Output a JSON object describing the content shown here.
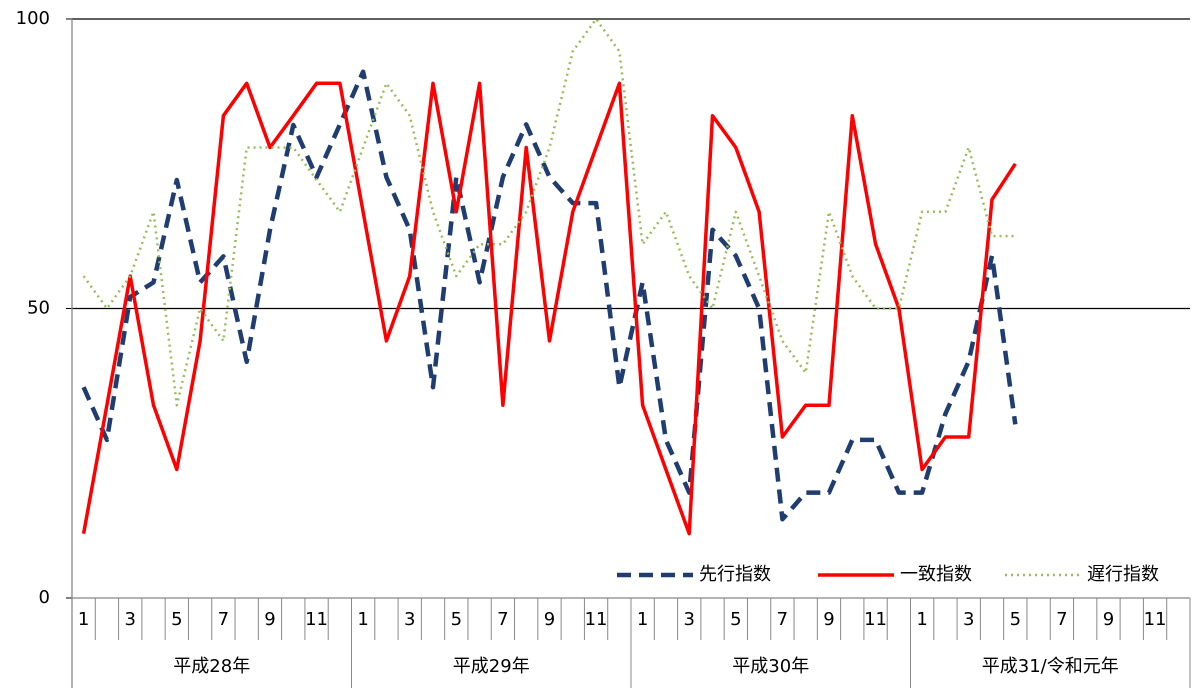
{
  "chart_data": {
    "type": "line",
    "categories": [
      "1",
      null,
      "3",
      null,
      "5",
      null,
      "7",
      null,
      "9",
      null,
      "11",
      null,
      "1",
      null,
      "3",
      null,
      "5",
      null,
      "7",
      null,
      "9",
      null,
      "11",
      null,
      "1",
      null,
      "3",
      null,
      "5",
      null,
      "7",
      null,
      "9",
      null,
      "11",
      null,
      "1",
      null,
      "3",
      null,
      "5",
      null,
      "7",
      null,
      "9",
      null,
      "11",
      null
    ],
    "x_groups": [
      "平成28年",
      "平成29年",
      "平成30年",
      "平成31/令和元年"
    ],
    "ylim": [
      0,
      100
    ],
    "yticks": [
      0,
      50,
      100
    ],
    "grid": true,
    "legend": "lower right",
    "series": [
      {
        "name": "先行指数",
        "color": "#1f3d70",
        "style": "dashed",
        "values": [
          36.4,
          27.3,
          52,
          54.5,
          72.2,
          54.5,
          59,
          40.8,
          63.6,
          81.7,
          72.7,
          81.8,
          90.9,
          72.7,
          63.6,
          36.4,
          72.7,
          54.5,
          72.7,
          81.8,
          72.7,
          68.2,
          68.2,
          36.4,
          54.5,
          27.3,
          18.2,
          63.6,
          59.1,
          50,
          13.6,
          18.2,
          18.2,
          27.3,
          27.3,
          18.2,
          18.2,
          31.8,
          40.9,
          59.1,
          30,
          null,
          null,
          null,
          null,
          null,
          null,
          null
        ]
      },
      {
        "name": "一致指数",
        "color": "#ff0000",
        "style": "solid",
        "values": [
          11.1,
          33.3,
          55.6,
          33.3,
          22.2,
          44.4,
          83.3,
          88.9,
          77.8,
          83.3,
          88.9,
          88.9,
          66.7,
          44.4,
          55.6,
          88.9,
          66.7,
          88.9,
          33.3,
          77.8,
          44.4,
          66.7,
          77.8,
          88.9,
          33.3,
          22.2,
          11.1,
          83.3,
          77.8,
          66.7,
          27.8,
          33.3,
          33.3,
          83.3,
          61.1,
          50,
          22.2,
          27.8,
          27.8,
          68.8,
          75,
          null,
          null,
          null,
          null,
          null,
          null,
          null
        ]
      },
      {
        "name": "遅行指数",
        "color": "#9bbb59",
        "style": "dotted",
        "values": [
          55.6,
          50,
          55.6,
          66.7,
          33.3,
          50,
          44.4,
          77.8,
          77.8,
          77.8,
          72.2,
          66.7,
          77.8,
          88.9,
          83.3,
          66.7,
          55.6,
          61.1,
          61.1,
          66.7,
          77.8,
          94.4,
          100,
          94.4,
          61.1,
          66.7,
          55.6,
          50,
          66.7,
          55.6,
          44.4,
          38.9,
          66.7,
          55.6,
          50,
          50,
          66.7,
          66.7,
          77.8,
          62.5,
          62.5,
          null,
          null,
          null,
          null,
          null,
          null,
          null
        ]
      }
    ]
  }
}
